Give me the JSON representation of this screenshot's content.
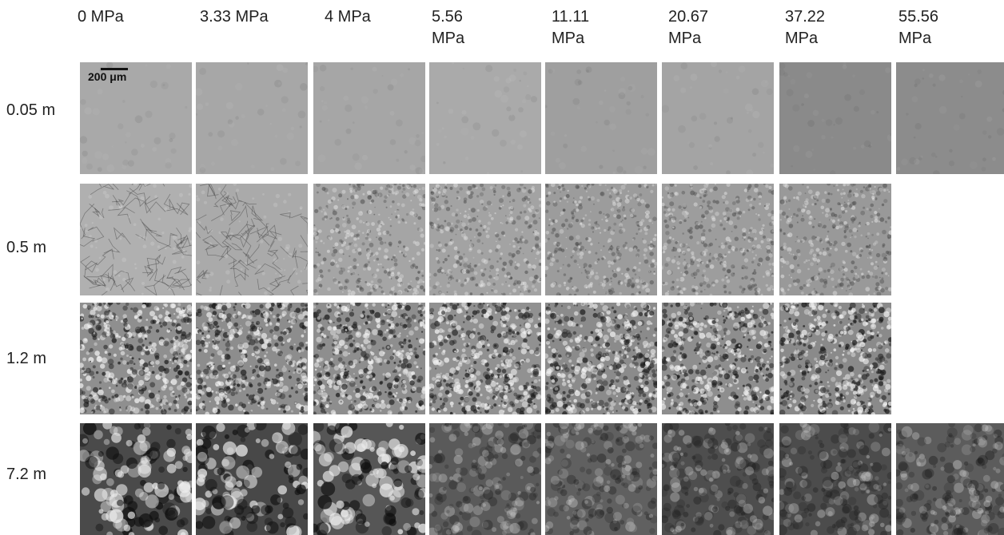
{
  "columns": [
    {
      "label": "0 MPa"
    },
    {
      "label": "3.33 MPa"
    },
    {
      "label": "4 MPa"
    },
    {
      "label": "5.56\nMPa"
    },
    {
      "label": "11.11\nMPa"
    },
    {
      "label": "20.67\nMPa"
    },
    {
      "label": "37.22\nMPa"
    },
    {
      "label": "55.56\nMPa"
    }
  ],
  "rows": [
    {
      "label": "0.05 m"
    },
    {
      "label": "0.5 m"
    },
    {
      "label": "1.2 m"
    },
    {
      "label": "7.2 m"
    }
  ],
  "scale_bar": {
    "label": "200 μm"
  },
  "tiles": [
    [
      {
        "present": true,
        "tone": "#a9a9a9",
        "texture": "smooth"
      },
      {
        "present": true,
        "tone": "#a7a7a7",
        "texture": "smooth"
      },
      {
        "present": true,
        "tone": "#a6a6a6",
        "texture": "smooth"
      },
      {
        "present": true,
        "tone": "#aaaaaa",
        "texture": "smooth"
      },
      {
        "present": true,
        "tone": "#9f9f9f",
        "texture": "smooth"
      },
      {
        "present": true,
        "tone": "#a4a4a4",
        "texture": "smooth"
      },
      {
        "present": true,
        "tone": "#8a8a8a",
        "texture": "smooth"
      },
      {
        "present": true,
        "tone": "#8c8c8c",
        "texture": "smooth"
      }
    ],
    [
      {
        "present": true,
        "tone": "#b0b0b0",
        "texture": "cracks"
      },
      {
        "present": true,
        "tone": "#aaaaaa",
        "texture": "cracks"
      },
      {
        "present": true,
        "tone": "#a5a5a5",
        "texture": "fine"
      },
      {
        "present": true,
        "tone": "#a3a3a3",
        "texture": "fine"
      },
      {
        "present": true,
        "tone": "#9c9c9c",
        "texture": "fine"
      },
      {
        "present": true,
        "tone": "#9d9d9d",
        "texture": "fine"
      },
      {
        "present": true,
        "tone": "#999999",
        "texture": "fine"
      },
      {
        "present": false
      }
    ],
    [
      {
        "present": true,
        "tone": "#8f8f8f",
        "texture": "speckle"
      },
      {
        "present": true,
        "tone": "#8d8d8d",
        "texture": "speckle"
      },
      {
        "present": true,
        "tone": "#8e8e8e",
        "texture": "speckle"
      },
      {
        "present": true,
        "tone": "#919191",
        "texture": "speckle"
      },
      {
        "present": true,
        "tone": "#8b8b8b",
        "texture": "speckle"
      },
      {
        "present": true,
        "tone": "#8e8e8e",
        "texture": "speckle"
      },
      {
        "present": true,
        "tone": "#8a8a8a",
        "texture": "speckle"
      },
      {
        "present": false
      }
    ],
    [
      {
        "present": true,
        "tone": "#4a4a4a",
        "texture": "coarse"
      },
      {
        "present": true,
        "tone": "#484848",
        "texture": "coarse"
      },
      {
        "present": true,
        "tone": "#565656",
        "texture": "coarse"
      },
      {
        "present": true,
        "tone": "#5a5a5a",
        "texture": "blur"
      },
      {
        "present": true,
        "tone": "#606060",
        "texture": "blur"
      },
      {
        "present": true,
        "tone": "#4e4e4e",
        "texture": "blur"
      },
      {
        "present": true,
        "tone": "#4c4c4c",
        "texture": "blur"
      },
      {
        "present": true,
        "tone": "#5c5c5c",
        "texture": "blur"
      }
    ]
  ]
}
